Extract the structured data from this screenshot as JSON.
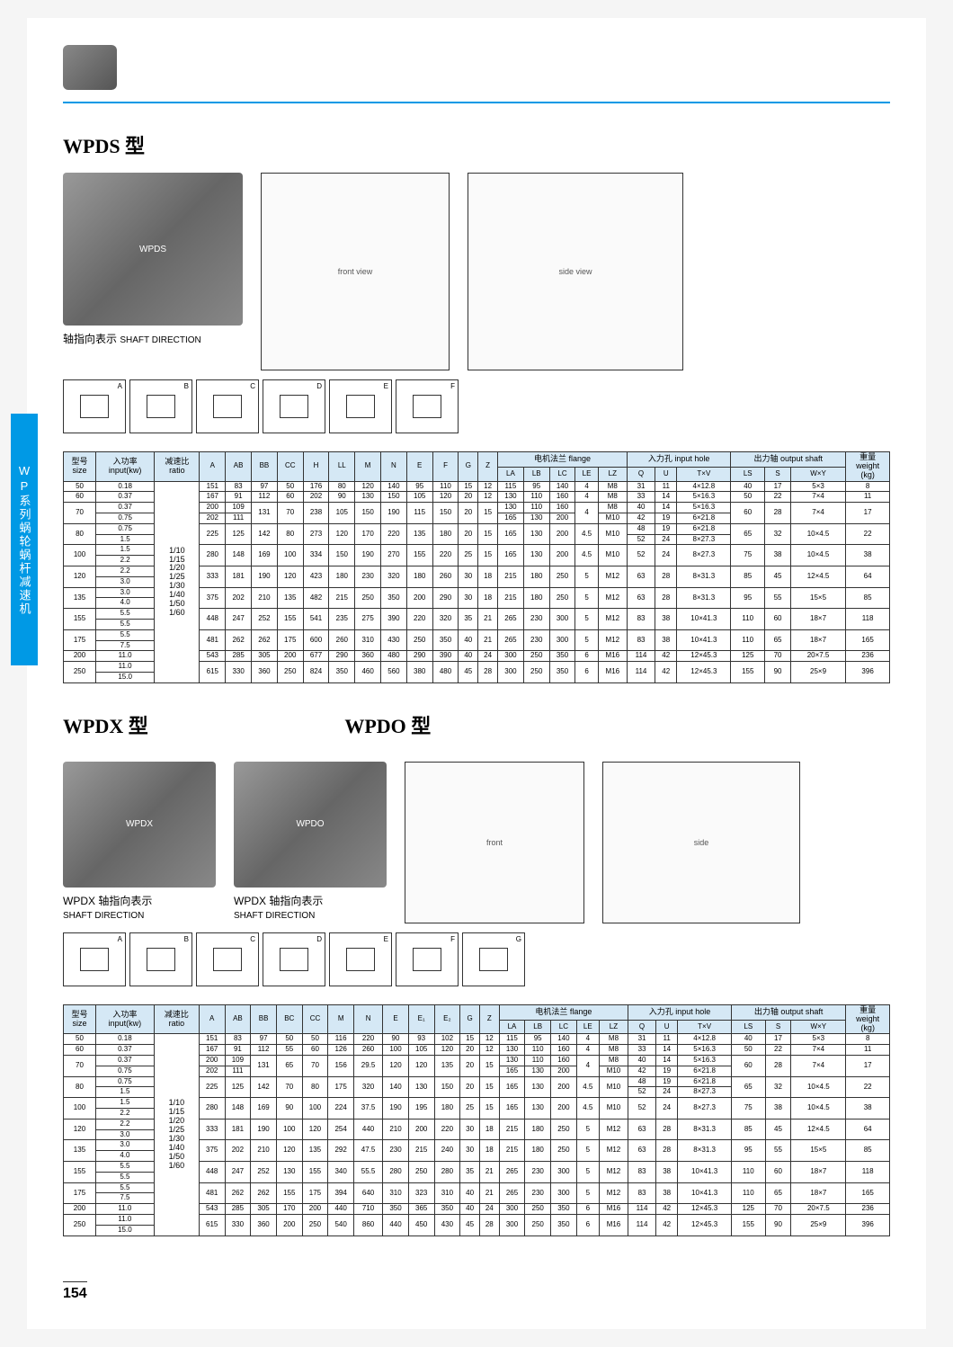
{
  "sideTab": "WP系列蜗轮蜗杆减速机",
  "pageNumber": "154",
  "section1": {
    "title": "WPDS 型",
    "shaftLabel": "轴指向表示",
    "shaftLabelEn": "SHAFT DIRECTION",
    "shaftTags": [
      "A",
      "B",
      "C",
      "D",
      "E",
      "F"
    ]
  },
  "section2": {
    "title1": "WPDX 型",
    "title2": "WPDO 型",
    "shaftLabel1": "WPDX 轴指向表示",
    "shaftLabel1En": "SHAFT DIRECTION",
    "shaftLabel2": "WPDX 轴指向表示",
    "shaftLabel2En": "SHAFT DIRECTION",
    "shaftTags": [
      "A",
      "B",
      "C",
      "D",
      "E",
      "F",
      "G"
    ]
  },
  "table1": {
    "headers": {
      "size": "型号\nsize",
      "input": "入功率\ninput(kw)",
      "ratio": "减速比\nratio",
      "flange": "电机法兰 flange",
      "inputHole": "入力孔 input hole",
      "outputShaft": "出力轴 output shaft",
      "weight": "重量\nweight\n(kg)",
      "cols": [
        "A",
        "AB",
        "BB",
        "CC",
        "H",
        "LL",
        "M",
        "N",
        "E",
        "F",
        "G",
        "Z"
      ],
      "flangeCols": [
        "LA",
        "LB",
        "LC",
        "LE",
        "LZ"
      ],
      "inputCols": [
        "Q",
        "U",
        "T×V"
      ],
      "outputCols": [
        "LS",
        "S",
        "W×Y"
      ]
    },
    "ratioText": "1/10\n1/15\n1/20\n1/25\n1/30\n1/40\n1/50\n1/60",
    "rows": [
      {
        "size": "50",
        "input": [
          "0.18"
        ],
        "d": [
          "151",
          "83",
          "97",
          "50",
          "176",
          "80",
          "120",
          "140",
          "95",
          "110",
          "15",
          "12",
          "115",
          "95",
          "140",
          "4",
          "M8",
          "31",
          "11",
          "4×12.8",
          "40",
          "17",
          "5×3",
          "8"
        ]
      },
      {
        "size": "60",
        "input": [
          "0.37"
        ],
        "d": [
          "167",
          "91",
          "112",
          "60",
          "202",
          "90",
          "130",
          "150",
          "105",
          "120",
          "20",
          "12",
          "130",
          "110",
          "160",
          "4",
          "M8",
          "33",
          "14",
          "5×16.3",
          "50",
          "22",
          "7×4",
          "11"
        ]
      },
      {
        "size": "70",
        "input": [
          "0.37",
          "0.75"
        ],
        "d": [
          "200",
          "109",
          "131",
          "70",
          "238",
          "105",
          "150",
          "190",
          "115",
          "150",
          "20",
          "15",
          "130",
          "110",
          "160",
          "4",
          "M8",
          "40",
          "14",
          "5×16.3",
          "60",
          "28",
          "7×4",
          "17"
        ],
        "d2": [
          "202",
          "111",
          "",
          "",
          "",
          "",
          "",
          "",
          "",
          "",
          "",
          "",
          "165",
          "130",
          "200",
          "",
          "M10",
          "42",
          "19",
          "6×21.8",
          "",
          "",
          "",
          ""
        ]
      },
      {
        "size": "80",
        "input": [
          "0.75",
          "1.5"
        ],
        "d": [
          "225",
          "125",
          "142",
          "80",
          "273",
          "120",
          "170",
          "220",
          "135",
          "180",
          "20",
          "15",
          "165",
          "130",
          "200",
          "4.5",
          "M10",
          "48",
          "19",
          "6×21.8",
          "65",
          "32",
          "10×4.5",
          "22"
        ],
        "d2": [
          "",
          "",
          "",
          "",
          "",
          "",
          "",
          "",
          "",
          "",
          "",
          "",
          "",
          "",
          "",
          "",
          "",
          "52",
          "24",
          "8×27.3",
          "",
          "",
          "",
          ""
        ]
      },
      {
        "size": "100",
        "input": [
          "1.5",
          "2.2"
        ],
        "d": [
          "280",
          "148",
          "169",
          "100",
          "334",
          "150",
          "190",
          "270",
          "155",
          "220",
          "25",
          "15",
          "165",
          "130",
          "200",
          "4.5",
          "M10",
          "52",
          "24",
          "8×27.3",
          "75",
          "38",
          "10×4.5",
          "38"
        ]
      },
      {
        "size": "120",
        "input": [
          "2.2",
          "3.0"
        ],
        "d": [
          "333",
          "181",
          "190",
          "120",
          "423",
          "180",
          "230",
          "320",
          "180",
          "260",
          "30",
          "18",
          "215",
          "180",
          "250",
          "5",
          "M12",
          "63",
          "28",
          "8×31.3",
          "85",
          "45",
          "12×4.5",
          "64"
        ]
      },
      {
        "size": "135",
        "input": [
          "3.0",
          "4.0"
        ],
        "d": [
          "375",
          "202",
          "210",
          "135",
          "482",
          "215",
          "250",
          "350",
          "200",
          "290",
          "30",
          "18",
          "215",
          "180",
          "250",
          "5",
          "M12",
          "63",
          "28",
          "8×31.3",
          "95",
          "55",
          "15×5",
          "85"
        ]
      },
      {
        "size": "155",
        "input": [
          "5.5",
          "5.5"
        ],
        "d": [
          "448",
          "247",
          "252",
          "155",
          "541",
          "235",
          "275",
          "390",
          "220",
          "320",
          "35",
          "21",
          "265",
          "230",
          "300",
          "5",
          "M12",
          "83",
          "38",
          "10×41.3",
          "110",
          "60",
          "18×7",
          "118"
        ]
      },
      {
        "size": "175",
        "input": [
          "5.5",
          "7.5"
        ],
        "d": [
          "481",
          "262",
          "262",
          "175",
          "600",
          "260",
          "310",
          "430",
          "250",
          "350",
          "40",
          "21",
          "265",
          "230",
          "300",
          "5",
          "M12",
          "83",
          "38",
          "10×41.3",
          "110",
          "65",
          "18×7",
          "165"
        ]
      },
      {
        "size": "200",
        "input": [
          "11.0"
        ],
        "d": [
          "543",
          "285",
          "305",
          "200",
          "677",
          "290",
          "360",
          "480",
          "290",
          "390",
          "40",
          "24",
          "300",
          "250",
          "350",
          "6",
          "M16",
          "114",
          "42",
          "12×45.3",
          "125",
          "70",
          "20×7.5",
          "236"
        ]
      },
      {
        "size": "250",
        "input": [
          "11.0",
          "15.0"
        ],
        "d": [
          "615",
          "330",
          "360",
          "250",
          "824",
          "350",
          "460",
          "560",
          "380",
          "480",
          "45",
          "28",
          "300",
          "250",
          "350",
          "6",
          "M16",
          "114",
          "42",
          "12×45.3",
          "155",
          "90",
          "25×9",
          "396"
        ]
      }
    ]
  },
  "table2": {
    "headers": {
      "size": "型号\nsize",
      "input": "入功率\ninput(kw)",
      "ratio": "减速比\nratio",
      "flange": "电机法兰 flange",
      "inputHole": "入力孔 input hole",
      "outputShaft": "出力轴 output shaft",
      "weight": "重量\nweight\n(kg)",
      "cols": [
        "A",
        "AB",
        "BB",
        "BC",
        "CC",
        "M",
        "N",
        "E",
        "E₁",
        "E₂",
        "G",
        "Z"
      ],
      "flangeCols": [
        "LA",
        "LB",
        "LC",
        "LE",
        "LZ"
      ],
      "inputCols": [
        "Q",
        "U",
        "T×V"
      ],
      "outputCols": [
        "LS",
        "S",
        "W×Y"
      ]
    },
    "ratioText": "1/10\n1/15\n1/20\n1/25\n1/30\n1/40\n1/50\n1/60",
    "rows": [
      {
        "size": "50",
        "input": [
          "0.18"
        ],
        "d": [
          "151",
          "83",
          "97",
          "50",
          "50",
          "116",
          "220",
          "90",
          "93",
          "102",
          "15",
          "12",
          "115",
          "95",
          "140",
          "4",
          "M8",
          "31",
          "11",
          "4×12.8",
          "40",
          "17",
          "5×3",
          "8"
        ]
      },
      {
        "size": "60",
        "input": [
          "0.37"
        ],
        "d": [
          "167",
          "91",
          "112",
          "55",
          "60",
          "126",
          "260",
          "100",
          "105",
          "120",
          "20",
          "12",
          "130",
          "110",
          "160",
          "4",
          "M8",
          "33",
          "14",
          "5×16.3",
          "50",
          "22",
          "7×4",
          "11"
        ]
      },
      {
        "size": "70",
        "input": [
          "0.37",
          "0.75"
        ],
        "d": [
          "200",
          "109",
          "131",
          "65",
          "70",
          "156",
          "29.5",
          "120",
          "120",
          "135",
          "20",
          "15",
          "130",
          "110",
          "160",
          "4",
          "M8",
          "40",
          "14",
          "5×16.3",
          "60",
          "28",
          "7×4",
          "17"
        ],
        "d2": [
          "202",
          "111",
          "",
          "",
          "",
          "",
          "",
          "",
          "",
          "",
          "",
          "",
          "165",
          "130",
          "200",
          "",
          "M10",
          "42",
          "19",
          "6×21.8",
          "",
          "",
          "",
          ""
        ]
      },
      {
        "size": "80",
        "input": [
          "0.75",
          "1.5"
        ],
        "d": [
          "225",
          "125",
          "142",
          "70",
          "80",
          "175",
          "320",
          "140",
          "130",
          "150",
          "20",
          "15",
          "165",
          "130",
          "200",
          "4.5",
          "M10",
          "48",
          "19",
          "6×21.8",
          "65",
          "32",
          "10×4.5",
          "22"
        ],
        "d2": [
          "",
          "",
          "",
          "",
          "",
          "",
          "",
          "",
          "",
          "",
          "",
          "",
          "",
          "",
          "",
          "",
          "",
          "52",
          "24",
          "8×27.3",
          "",
          "",
          "",
          ""
        ]
      },
      {
        "size": "100",
        "input": [
          "1.5",
          "2.2"
        ],
        "d": [
          "280",
          "148",
          "169",
          "90",
          "100",
          "224",
          "37.5",
          "190",
          "195",
          "180",
          "25",
          "15",
          "165",
          "130",
          "200",
          "4.5",
          "M10",
          "52",
          "24",
          "8×27.3",
          "75",
          "38",
          "10×4.5",
          "38"
        ]
      },
      {
        "size": "120",
        "input": [
          "2.2",
          "3.0"
        ],
        "d": [
          "333",
          "181",
          "190",
          "100",
          "120",
          "254",
          "440",
          "210",
          "200",
          "220",
          "30",
          "18",
          "215",
          "180",
          "250",
          "5",
          "M12",
          "63",
          "28",
          "8×31.3",
          "85",
          "45",
          "12×4.5",
          "64"
        ]
      },
      {
        "size": "135",
        "input": [
          "3.0",
          "4.0"
        ],
        "d": [
          "375",
          "202",
          "210",
          "120",
          "135",
          "292",
          "47.5",
          "230",
          "215",
          "240",
          "30",
          "18",
          "215",
          "180",
          "250",
          "5",
          "M12",
          "63",
          "28",
          "8×31.3",
          "95",
          "55",
          "15×5",
          "85"
        ]
      },
      {
        "size": "155",
        "input": [
          "5.5",
          "5.5"
        ],
        "d": [
          "448",
          "247",
          "252",
          "130",
          "155",
          "340",
          "55.5",
          "280",
          "250",
          "280",
          "35",
          "21",
          "265",
          "230",
          "300",
          "5",
          "M12",
          "83",
          "38",
          "10×41.3",
          "110",
          "60",
          "18×7",
          "118"
        ]
      },
      {
        "size": "175",
        "input": [
          "5.5",
          "7.5"
        ],
        "d": [
          "481",
          "262",
          "262",
          "155",
          "175",
          "394",
          "640",
          "310",
          "323",
          "310",
          "40",
          "21",
          "265",
          "230",
          "300",
          "5",
          "M12",
          "83",
          "38",
          "10×41.3",
          "110",
          "65",
          "18×7",
          "165"
        ]
      },
      {
        "size": "200",
        "input": [
          "11.0"
        ],
        "d": [
          "543",
          "285",
          "305",
          "170",
          "200",
          "440",
          "710",
          "350",
          "365",
          "350",
          "40",
          "24",
          "300",
          "250",
          "350",
          "6",
          "M16",
          "114",
          "42",
          "12×45.3",
          "125",
          "70",
          "20×7.5",
          "236"
        ]
      },
      {
        "size": "250",
        "input": [
          "11.0",
          "15.0"
        ],
        "d": [
          "615",
          "330",
          "360",
          "200",
          "250",
          "540",
          "860",
          "440",
          "450",
          "430",
          "45",
          "28",
          "300",
          "250",
          "350",
          "6",
          "M16",
          "114",
          "42",
          "12×45.3",
          "155",
          "90",
          "25×9",
          "396"
        ]
      }
    ]
  },
  "colors": {
    "accent": "#0099e5",
    "headerBg": "#d5e8f5",
    "border": "#333333"
  }
}
